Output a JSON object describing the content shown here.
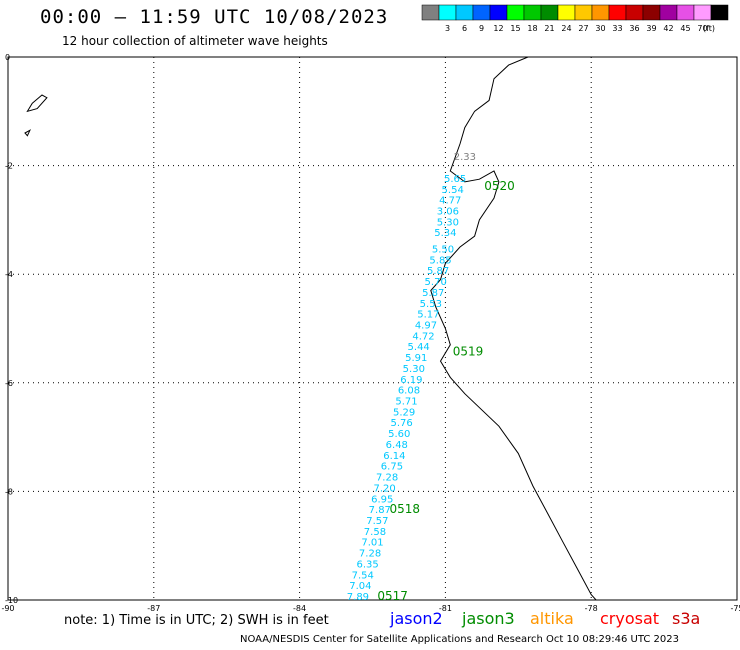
{
  "header": {
    "title": "00:00 – 11:59 UTC 10/08/2023",
    "subtitle": "12 hour collection of altimeter wave heights"
  },
  "legend": {
    "unit_label": "(ft)",
    "swatches": [
      {
        "color": "#808080",
        "label": ""
      },
      {
        "color": "#00ffff",
        "label": "3"
      },
      {
        "color": "#00c8ff",
        "label": "6"
      },
      {
        "color": "#0064ff",
        "label": "9"
      },
      {
        "color": "#0000ff",
        "label": "12"
      },
      {
        "color": "#00ff00",
        "label": "15"
      },
      {
        "color": "#00c800",
        "label": "18"
      },
      {
        "color": "#008c00",
        "label": "21"
      },
      {
        "color": "#ffff00",
        "label": "24"
      },
      {
        "color": "#ffc800",
        "label": "27"
      },
      {
        "color": "#ff9600",
        "label": "30"
      },
      {
        "color": "#ff0000",
        "label": "33"
      },
      {
        "color": "#c80000",
        "label": "36"
      },
      {
        "color": "#8c0000",
        "label": "39"
      },
      {
        "color": "#a000a0",
        "label": "42"
      },
      {
        "color": "#e650e6",
        "label": "45"
      },
      {
        "color": "#ff9bff",
        "label": "70"
      },
      {
        "color": "#000000",
        "label": ""
      }
    ]
  },
  "axes": {
    "lon_min": -90,
    "lon_max": -75,
    "lat_min": -10,
    "lat_max": 0,
    "x_ticks": [
      {
        "value": -90,
        "label": "-90"
      },
      {
        "value": -87,
        "label": "-87"
      },
      {
        "value": -84,
        "label": "-84"
      },
      {
        "value": -81,
        "label": "-81"
      },
      {
        "value": -78,
        "label": "-78"
      },
      {
        "value": -75,
        "label": "-75"
      }
    ],
    "y_ticks": [
      {
        "value": 0,
        "label": "0"
      },
      {
        "value": -2,
        "label": "-2"
      },
      {
        "value": -4,
        "label": "-4"
      },
      {
        "value": -6,
        "label": "-6"
      },
      {
        "value": -8,
        "label": "-8"
      },
      {
        "value": -10,
        "label": "-10"
      }
    ]
  },
  "track_labels": [
    {
      "lon": -80.6,
      "lat": -1.9,
      "text": "2.33",
      "color": "#808080"
    },
    {
      "lon": -80.8,
      "lat": -2.3,
      "text": "5.65",
      "color": "#00c8ff"
    },
    {
      "lon": -80.85,
      "lat": -2.5,
      "text": "5.54",
      "color": "#00c8ff"
    },
    {
      "lon": -80.9,
      "lat": -2.7,
      "text": "4.77",
      "color": "#00c8ff"
    },
    {
      "lon": -80.95,
      "lat": -2.9,
      "text": "3.06",
      "color": "#00c8ff"
    },
    {
      "lon": -80.95,
      "lat": -3.1,
      "text": "5.30",
      "color": "#00c8ff"
    },
    {
      "lon": -81.0,
      "lat": -3.3,
      "text": "5.34",
      "color": "#00c8ff"
    },
    {
      "lon": -81.05,
      "lat": -3.6,
      "text": "5.50",
      "color": "#00c8ff"
    },
    {
      "lon": -81.1,
      "lat": -3.8,
      "text": "5.85",
      "color": "#00c8ff"
    },
    {
      "lon": -81.15,
      "lat": -4.0,
      "text": "5.87",
      "color": "#00c8ff"
    },
    {
      "lon": -81.2,
      "lat": -4.2,
      "text": "5.70",
      "color": "#00c8ff"
    },
    {
      "lon": -81.25,
      "lat": -4.4,
      "text": "5.87",
      "color": "#00c8ff"
    },
    {
      "lon": -81.3,
      "lat": -4.6,
      "text": "5.53",
      "color": "#00c8ff"
    },
    {
      "lon": -81.35,
      "lat": -4.8,
      "text": "5.17",
      "color": "#00c8ff"
    },
    {
      "lon": -81.4,
      "lat": -5.0,
      "text": "4.97",
      "color": "#00c8ff"
    },
    {
      "lon": -81.45,
      "lat": -5.2,
      "text": "4.72",
      "color": "#00c8ff"
    },
    {
      "lon": -81.55,
      "lat": -5.4,
      "text": "5.44",
      "color": "#00c8ff"
    },
    {
      "lon": -81.6,
      "lat": -5.6,
      "text": "5.91",
      "color": "#00c8ff"
    },
    {
      "lon": -81.65,
      "lat": -5.8,
      "text": "5.30",
      "color": "#00c8ff"
    },
    {
      "lon": -81.7,
      "lat": -6.0,
      "text": "6.19",
      "color": "#00c8ff"
    },
    {
      "lon": -81.75,
      "lat": -6.2,
      "text": "6.08",
      "color": "#00c8ff"
    },
    {
      "lon": -81.8,
      "lat": -6.4,
      "text": "5.71",
      "color": "#00c8ff"
    },
    {
      "lon": -81.85,
      "lat": -6.6,
      "text": "5.29",
      "color": "#00c8ff"
    },
    {
      "lon": -81.9,
      "lat": -6.8,
      "text": "5.76",
      "color": "#00c8ff"
    },
    {
      "lon": -81.95,
      "lat": -7.0,
      "text": "5.60",
      "color": "#00c8ff"
    },
    {
      "lon": -82.0,
      "lat": -7.2,
      "text": "6.48",
      "color": "#00c8ff"
    },
    {
      "lon": -82.05,
      "lat": -7.4,
      "text": "6.14",
      "color": "#00c8ff"
    },
    {
      "lon": -82.1,
      "lat": -7.6,
      "text": "6.75",
      "color": "#00c8ff"
    },
    {
      "lon": -82.2,
      "lat": -7.8,
      "text": "7.28",
      "color": "#00c8ff"
    },
    {
      "lon": -82.25,
      "lat": -8.0,
      "text": "7.20",
      "color": "#00c8ff"
    },
    {
      "lon": -82.3,
      "lat": -8.2,
      "text": "6.95",
      "color": "#00c8ff"
    },
    {
      "lon": -82.35,
      "lat": -8.4,
      "text": "7.87",
      "color": "#00c8ff"
    },
    {
      "lon": -82.4,
      "lat": -8.6,
      "text": "7.57",
      "color": "#00c8ff"
    },
    {
      "lon": -82.45,
      "lat": -8.8,
      "text": "7.58",
      "color": "#00c8ff"
    },
    {
      "lon": -82.5,
      "lat": -9.0,
      "text": "7.01",
      "color": "#00c8ff"
    },
    {
      "lon": -82.55,
      "lat": -9.2,
      "text": "7.28",
      "color": "#00c8ff"
    },
    {
      "lon": -82.6,
      "lat": -9.4,
      "text": "6.35",
      "color": "#00c8ff"
    },
    {
      "lon": -82.7,
      "lat": -9.6,
      "text": "7.54",
      "color": "#00c8ff"
    },
    {
      "lon": -82.75,
      "lat": -9.8,
      "text": "7.04",
      "color": "#00c8ff"
    },
    {
      "lon": -82.8,
      "lat": -10.0,
      "text": "7.89",
      "color": "#00c8ff"
    }
  ],
  "time_labels": [
    {
      "lon": -80.2,
      "lat": -2.45,
      "text": "0520",
      "color": "#008c00"
    },
    {
      "lon": -80.85,
      "lat": -5.5,
      "text": "0519",
      "color": "#008c00"
    },
    {
      "lon": -82.15,
      "lat": -8.4,
      "text": "0518",
      "color": "#008c00"
    },
    {
      "lon": -82.4,
      "lat": -10.0,
      "text": "0517",
      "color": "#008c00"
    }
  ],
  "coastline": [
    [
      -79.3,
      0.0
    ],
    [
      -79.7,
      -0.15
    ],
    [
      -80.0,
      -0.4
    ],
    [
      -80.1,
      -0.8
    ],
    [
      -80.4,
      -1.0
    ],
    [
      -80.6,
      -1.3
    ],
    [
      -80.7,
      -1.6
    ],
    [
      -80.9,
      -2.1
    ],
    [
      -80.6,
      -2.3
    ],
    [
      -80.3,
      -2.25
    ],
    [
      -80.0,
      -2.1
    ],
    [
      -79.9,
      -2.3
    ],
    [
      -80.0,
      -2.6
    ],
    [
      -80.3,
      -3.0
    ],
    [
      -80.4,
      -3.3
    ],
    [
      -80.7,
      -3.5
    ],
    [
      -81.0,
      -3.8
    ],
    [
      -81.1,
      -4.1
    ],
    [
      -81.3,
      -4.3
    ],
    [
      -81.2,
      -4.6
    ],
    [
      -81.0,
      -5.0
    ],
    [
      -80.9,
      -5.3
    ],
    [
      -81.1,
      -5.6
    ],
    [
      -80.9,
      -5.9
    ],
    [
      -80.6,
      -6.2
    ],
    [
      -79.9,
      -6.8
    ],
    [
      -79.5,
      -7.3
    ],
    [
      -79.2,
      -7.9
    ],
    [
      -78.9,
      -8.4
    ],
    [
      -78.6,
      -8.9
    ],
    [
      -78.3,
      -9.4
    ],
    [
      -78.0,
      -9.9
    ],
    [
      -77.9,
      -10.0
    ]
  ],
  "island": [
    [
      -89.5,
      -0.85
    ],
    [
      -89.3,
      -0.7
    ],
    [
      -89.2,
      -0.75
    ],
    [
      -89.4,
      -0.95
    ],
    [
      -89.6,
      -1.0
    ]
  ],
  "islet": [
    [
      -89.65,
      -1.4
    ],
    [
      -89.55,
      -1.35
    ],
    [
      -89.6,
      -1.45
    ]
  ],
  "notes": {
    "text": "note: 1) Time is in UTC; 2) SWH is in feet",
    "satellites": [
      {
        "name": "jason2",
        "color": "#0000ff"
      },
      {
        "name": "jason3",
        "color": "#008c00"
      },
      {
        "name": "altika",
        "color": "#ff9600"
      },
      {
        "name": "cryosat",
        "color": "#ff0000"
      },
      {
        "name": "s3a",
        "color": "#c80000"
      }
    ]
  },
  "footer": {
    "text": "NOAA/NESDIS Center for Satellite Applications and Research    Oct 10 08:29:46 UTC 2023"
  }
}
